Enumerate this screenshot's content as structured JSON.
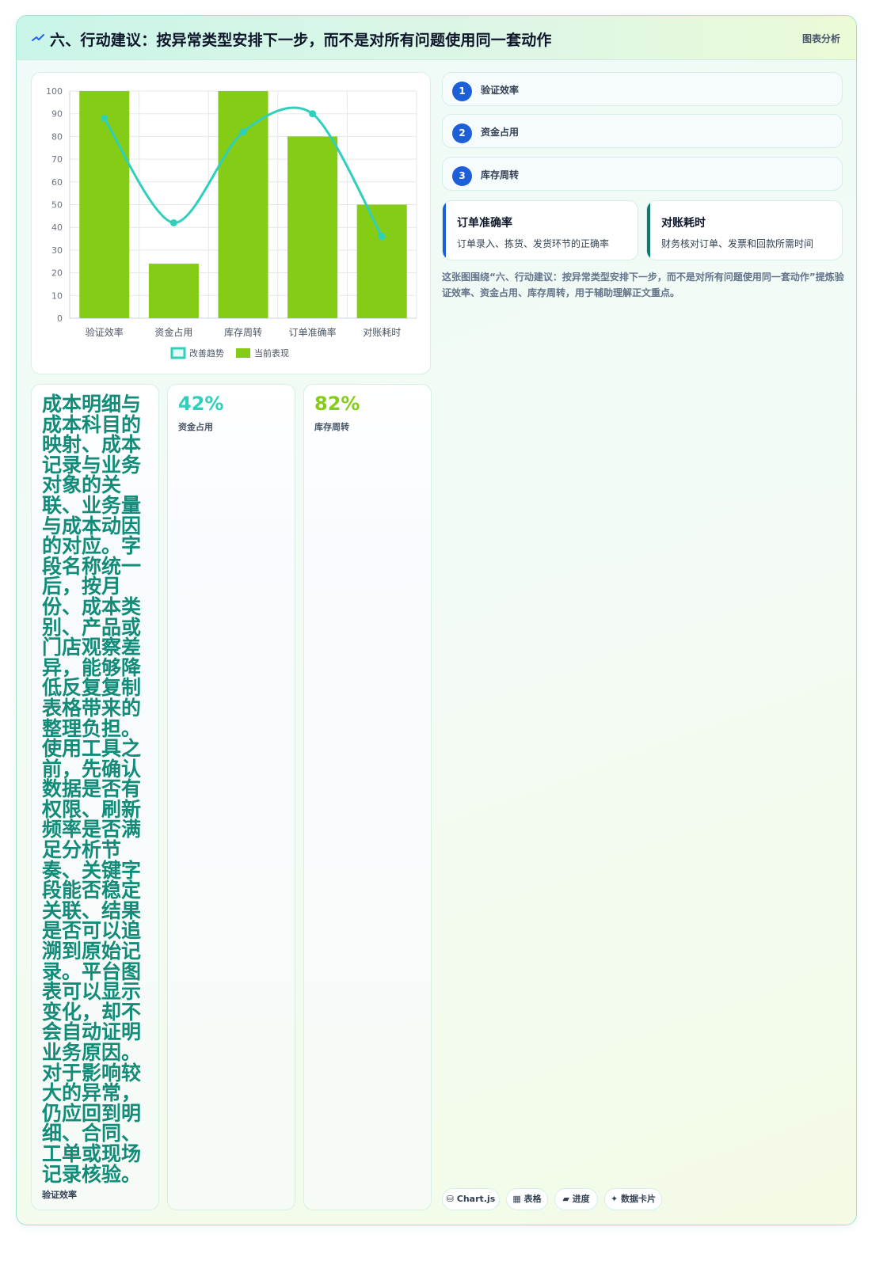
{
  "header": {
    "icon": "trend-icon",
    "title": "六、行动建议：按异常类型安排下一步，而不是对所有问题使用同一套动作",
    "tag": "图表分析"
  },
  "chart_data": {
    "type": "bar",
    "categories": [
      "验证效率",
      "资金占用",
      "库存周转",
      "订单准确率",
      "对账耗时"
    ],
    "series": [
      {
        "name": "改善趋势",
        "type": "line",
        "color": "#2fcfbc",
        "values": [
          88,
          42,
          82,
          90,
          36
        ]
      },
      {
        "name": "当前表现",
        "type": "bar",
        "color": "#84cc16",
        "values": [
          100,
          24,
          100,
          80,
          50
        ]
      }
    ],
    "ylim": [
      0,
      100
    ],
    "yticks": [
      0,
      10,
      20,
      30,
      40,
      50,
      60,
      70,
      80,
      90,
      100
    ],
    "grid": true,
    "legend": "bottom"
  },
  "steps": [
    {
      "num": "1",
      "label": "验证效率"
    },
    {
      "num": "2",
      "label": "资金占用"
    },
    {
      "num": "3",
      "label": "库存周转"
    }
  ],
  "metrics": [
    {
      "title": "订单准确率",
      "desc": "订单录入、拣货、发货环节的正确率",
      "accent": "#1d5fd9"
    },
    {
      "title": "对账耗时",
      "desc": "财务核对订单、发票和回款所需时间",
      "accent": "#0f766e"
    }
  ],
  "note": "这张图围绕“六、行动建议：按异常类型安排下一步，而不是对所有问题使用同一套动作”提炼验证效率、资金占用、库存周转，用于辅助理解正文重点。",
  "text_card": {
    "body": "成本明细与成本科目的映射、成本记录与业务对象的关联、业务量与成本动因的对应。字段名称统一后，按月份、成本类别、产品或门店观察差异，能够降低反复复制表格带来的整理负担。使用工具之前，先确认数据是否有权限、刷新频率是否满足分析节奏、关键字段能否稳定关联、结果是否可以追溯到原始记录。平台图表可以显示变化，却不会自动证明业务原因。对于影响较大的异常，仍应回到明细、合同、工单或现场记录核验。",
    "label": "验证效率"
  },
  "stat_cards": [
    {
      "value": "42%",
      "label": "资金占用",
      "color": "#2fcfbc"
    },
    {
      "value": "82%",
      "label": "库存周转",
      "color": "#84cc16"
    }
  ],
  "chips": [
    {
      "icon": "database-icon",
      "label": "Chart.js"
    },
    {
      "icon": "table-icon",
      "label": "表格"
    },
    {
      "icon": "progress-icon",
      "label": "进度"
    },
    {
      "icon": "sparkle-icon",
      "label": "数据卡片"
    }
  ]
}
